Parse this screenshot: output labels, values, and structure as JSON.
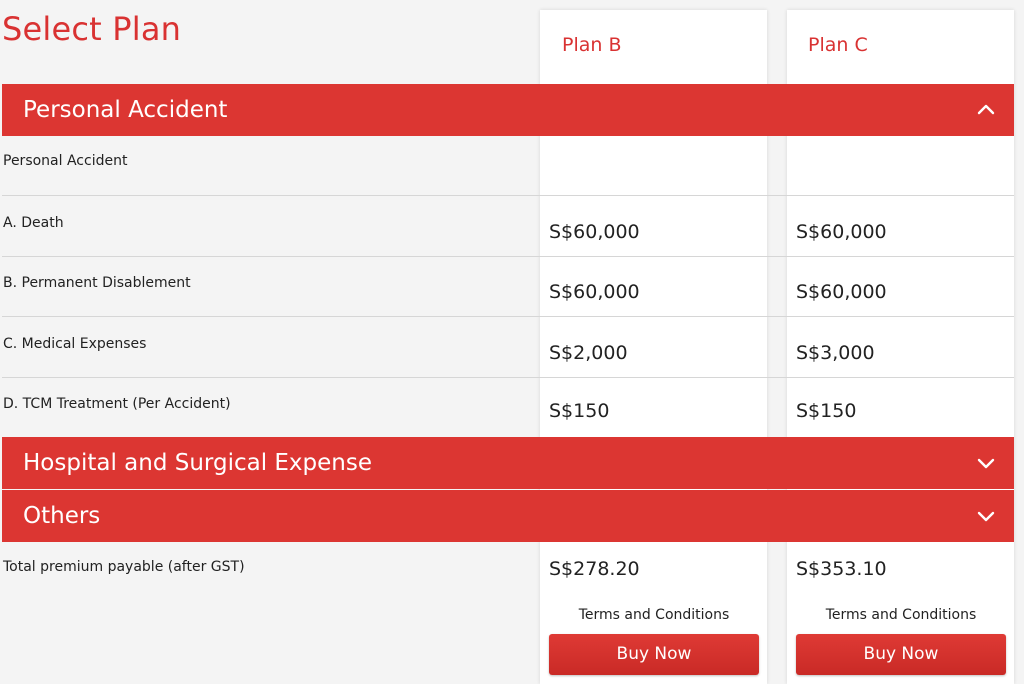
{
  "header": {
    "title": "Select Plan",
    "plans": [
      "Plan B",
      "Plan C"
    ]
  },
  "sections": {
    "personal_accident": {
      "title": "Personal Accident",
      "icon": "chevron-up-icon",
      "expanded": true
    },
    "hospital_surgical": {
      "title": "Hospital and Surgical Expense",
      "icon": "chevron-down-icon",
      "expanded": false
    },
    "others": {
      "title": "Others",
      "icon": "chevron-down-icon",
      "expanded": false
    }
  },
  "benefits": {
    "header_label": "Personal Accident",
    "rows": [
      {
        "label": "A. Death",
        "plan_b": "S$60,000",
        "plan_c": "S$60,000"
      },
      {
        "label": "B. Permanent Disablement",
        "plan_b": "S$60,000",
        "plan_c": "S$60,000"
      },
      {
        "label": "C. Medical Expenses",
        "plan_b": "S$2,000",
        "plan_c": "S$3,000"
      },
      {
        "label": "D. TCM Treatment (Per Accident)",
        "plan_b": "S$150",
        "plan_c": "S$150"
      }
    ]
  },
  "totals": {
    "label": "Total premium payable (after GST)",
    "plan_b": "S$278.20",
    "plan_c": "S$353.10"
  },
  "actions": {
    "terms_label": "Terms and Conditions",
    "buy_label": "Buy Now"
  },
  "colors": {
    "accent": "#dc3632",
    "title": "#d93232",
    "background": "#f4f4f4",
    "column": "#ffffff"
  }
}
